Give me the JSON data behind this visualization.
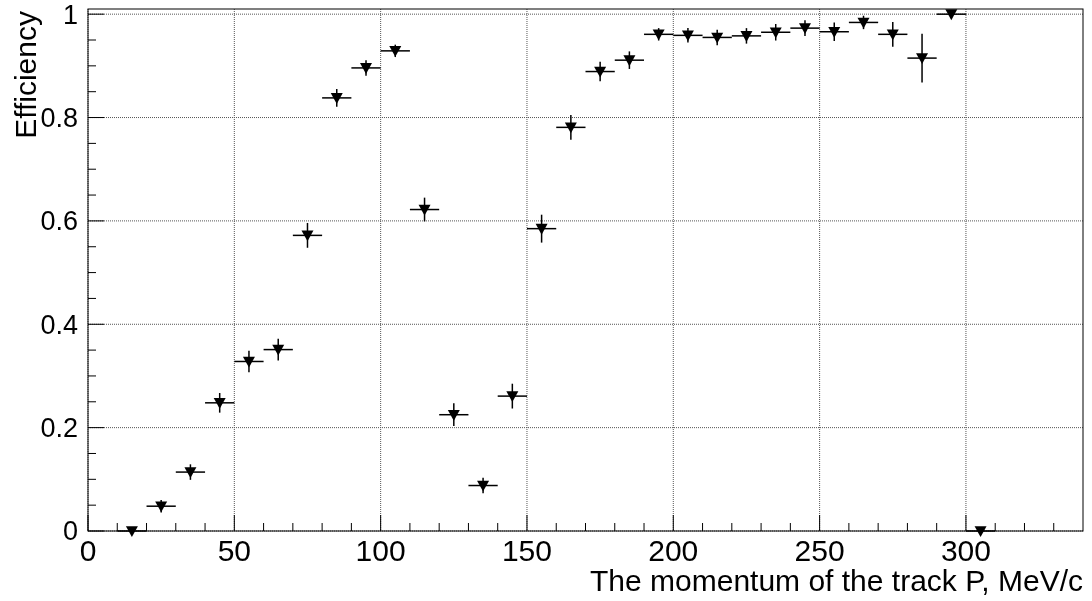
{
  "chart_data": {
    "type": "scatter",
    "xlabel": "The momentum of the track P, MeV/c",
    "ylabel": "Efficiency",
    "x": [
      15,
      25,
      35,
      45,
      55,
      65,
      75,
      85,
      95,
      105,
      115,
      125,
      135,
      145,
      155,
      165,
      175,
      185,
      195,
      205,
      215,
      225,
      235,
      245,
      255,
      265,
      275,
      285,
      295,
      305
    ],
    "series": [
      {
        "color": "#000000",
        "values": [
          0,
          0.048,
          0.114,
          0.248,
          0.328,
          0.351,
          0.572,
          0.838,
          0.896,
          0.929,
          0.622,
          0.225,
          0.088,
          0.261,
          0.585,
          0.781,
          0.889,
          0.911,
          0.961,
          0.959,
          0.955,
          0.958,
          0.965,
          0.973,
          0.966,
          0.984,
          0.961,
          0.915,
          1.0,
          0
        ],
        "errors": [
          null,
          0.012,
          0.015,
          0.019,
          0.021,
          0.021,
          0.024,
          0.017,
          0.015,
          0.012,
          0.023,
          0.022,
          0.015,
          0.024,
          0.027,
          0.024,
          0.019,
          0.017,
          0.012,
          0.014,
          0.015,
          0.015,
          0.016,
          0.015,
          0.018,
          0.013,
          0.024,
          0.047,
          null,
          null
        ],
        "xerrors": [
          5,
          5,
          5,
          5,
          5,
          5,
          5,
          5,
          5,
          5,
          5,
          5,
          5,
          5,
          5,
          5,
          5,
          5,
          5,
          5,
          5,
          5,
          5,
          5,
          5,
          5,
          5,
          5,
          5,
          5
        ]
      }
    ],
    "xlim": [
      0,
      340
    ],
    "ylim": [
      0,
      1.01
    ],
    "xticks": [
      0,
      {
        "value": 10,
        "label": null
      },
      {
        "value": 20,
        "label": null
      },
      {
        "value": 30,
        "label": null
      },
      {
        "value": 40,
        "label": null
      },
      50,
      {
        "value": 60,
        "label": null
      },
      {
        "value": 70,
        "label": null
      },
      {
        "value": 80,
        "label": null
      },
      {
        "value": 90,
        "label": null
      },
      100,
      {
        "value": 110,
        "label": null
      },
      {
        "value": 120,
        "label": null
      },
      {
        "value": 130,
        "label": null
      },
      {
        "value": 140,
        "label": null
      },
      150,
      {
        "value": 160,
        "label": null
      },
      {
        "value": 170,
        "label": null
      },
      {
        "value": 180,
        "label": null
      },
      {
        "value": 190,
        "label": null
      },
      200,
      {
        "value": 210,
        "label": null
      },
      {
        "value": 220,
        "label": null
      },
      {
        "value": 230,
        "label": null
      },
      {
        "value": 240,
        "label": null
      },
      250,
      {
        "value": 260,
        "label": null
      },
      {
        "value": 270,
        "label": null
      },
      {
        "value": 280,
        "label": null
      },
      {
        "value": 290,
        "label": null
      },
      300,
      {
        "value": 310,
        "label": null
      },
      {
        "value": 320,
        "label": null
      },
      {
        "value": 330,
        "label": null
      }
    ],
    "yticks": [
      0,
      {
        "value": 0.05,
        "label": null
      },
      {
        "value": 0.1,
        "label": null
      },
      {
        "value": 0.15,
        "label": null
      },
      0.2,
      {
        "value": 0.25,
        "label": null
      },
      {
        "value": 0.3,
        "label": null
      },
      {
        "value": 0.35,
        "label": null
      },
      0.4,
      {
        "value": 0.45,
        "label": null
      },
      {
        "value": 0.5,
        "label": null
      },
      {
        "value": 0.55,
        "label": null
      },
      0.6,
      {
        "value": 0.65,
        "label": null
      },
      {
        "value": 0.7,
        "label": null
      },
      {
        "value": 0.75,
        "label": null
      },
      0.8,
      {
        "value": 0.85,
        "label": null
      },
      {
        "value": 0.9,
        "label": null
      },
      {
        "value": 0.95,
        "label": null
      },
      1
    ],
    "grid": true,
    "marker": "triangle"
  }
}
